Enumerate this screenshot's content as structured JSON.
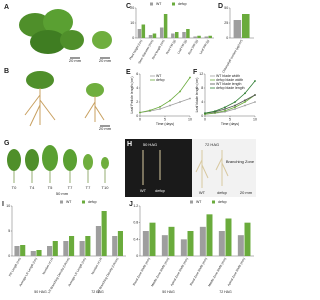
{
  "photos": [
    {
      "panel": "A",
      "texts": [
        "20 mm",
        "20 mm"
      ]
    },
    {
      "panel": "B",
      "texts": [
        "20 mm"
      ]
    },
    {
      "panel": "G",
      "texts": [
        "T0",
        "T4",
        "T5",
        "T7",
        "T7",
        "T10",
        "50 mm"
      ]
    },
    {
      "panel": "H",
      "texts": [
        "50 HAG",
        "72 HAG",
        "Branching Zone",
        "WT",
        "defcp",
        "WT",
        "defcp",
        "20 mm"
      ]
    }
  ],
  "chart_data": [
    {
      "type": "bar",
      "panel": "C",
      "categories": [
        "Plant height (cm)",
        "Stem diameter (mm)",
        "Root length (cm)",
        "Root FW (g)",
        "Leaf FW (g)",
        "Root DW (g)",
        "Leaf DW (g)"
      ],
      "series": [
        {
          "name": "WT",
          "color": "#9e9e9e",
          "values": [
            6,
            2,
            7,
            3,
            4,
            1,
            1
          ]
        },
        {
          "name": "defcp",
          "color": "#6aab3c",
          "values": [
            9,
            3,
            16,
            4,
            6,
            1.5,
            1.5
          ]
        }
      ],
      "ylim": [
        0,
        20
      ],
      "yticks": [
        0,
        10,
        20
      ]
    },
    {
      "type": "bar",
      "panel": "D",
      "categories": [
        "Chlorophyll content (µg/cm²)"
      ],
      "series": [
        {
          "name": "WT",
          "color": "#9e9e9e",
          "values": [
            30
          ]
        },
        {
          "name": "defcp",
          "color": "#6aab3c",
          "values": [
            40
          ]
        }
      ],
      "ylim": [
        0,
        50
      ],
      "yticks": [
        0,
        25,
        50
      ]
    },
    {
      "type": "line",
      "panel": "E",
      "ylabel": "Leaf Petiole length (cm)",
      "xlabel": "Time (days)",
      "x": [
        0,
        2,
        4,
        6,
        8,
        10
      ],
      "series": [
        {
          "name": "WT",
          "color": "#9e9e9e",
          "values": [
            0.5,
            0.7,
            1,
            1.5,
            2,
            2.5
          ]
        },
        {
          "name": "defcp",
          "color": "#6aab3c",
          "values": [
            0.5,
            0.8,
            1.3,
            2.2,
            3.5,
            5.5
          ]
        }
      ],
      "xlim": [
        0,
        10
      ],
      "xticks": [
        0,
        5,
        10
      ],
      "ylim": [
        0,
        6
      ],
      "yticks": [
        0,
        2,
        4,
        6
      ]
    },
    {
      "type": "line",
      "panel": "F",
      "ylabel": "Leaf blade length (cm)",
      "xlabel": "Time (days)",
      "x": [
        0,
        2,
        4,
        6,
        8,
        10
      ],
      "series": [
        {
          "name": "WT blade width",
          "color": "#9e9e9e",
          "values": [
            0.5,
            0.8,
            1.2,
            2,
            3,
            4
          ]
        },
        {
          "name": "defcp blade width",
          "color": "#6aab3c",
          "values": [
            0.5,
            0.9,
            1.5,
            2.5,
            4,
            6
          ]
        },
        {
          "name": "WT blade length",
          "color": "#555555",
          "values": [
            0.8,
            1.2,
            2,
            3,
            4.5,
            6
          ]
        },
        {
          "name": "defcp blade length",
          "color": "#2e7d32",
          "values": [
            0.8,
            1.4,
            2.5,
            4,
            6.5,
            10
          ]
        }
      ],
      "xlim": [
        0,
        10
      ],
      "xticks": [
        0,
        5,
        10
      ],
      "ylim": [
        0,
        12
      ],
      "yticks": [
        0,
        4,
        8,
        12
      ]
    },
    {
      "type": "bar",
      "panel": "I",
      "categories": [
        "PR Length (cm)",
        "Average LR Length (cm)",
        "Number of LR",
        "LR Branching Density (LR/cm)",
        "Average LR Length (cm)",
        "Number of LR",
        "LR Branching Density (LR/cm)"
      ],
      "group_labels": [
        "50 HAG",
        "72 HAG"
      ],
      "series": [
        {
          "name": "WT",
          "color": "#9e9e9e",
          "values": [
            2,
            1,
            2,
            3,
            3,
            6,
            4
          ]
        },
        {
          "name": "defcp",
          "color": "#6aab3c",
          "values": [
            2.2,
            1.2,
            3,
            4,
            4,
            9,
            5
          ]
        }
      ],
      "ylim": [
        0,
        10
      ],
      "yticks": [
        0,
        5,
        10
      ]
    },
    {
      "type": "bar",
      "panel": "J",
      "categories": [
        "Basal Zone Width (mm)",
        "Middle Zone Width (mm)",
        "Apical Zone Width (mm)",
        "Basal Zone Width (mm)",
        "Middle Zone Width (mm)",
        "Apical Zone Width (mm)"
      ],
      "group_labels": [
        "50 HAG",
        "72 HAG"
      ],
      "series": [
        {
          "name": "WT",
          "color": "#9e9e9e",
          "values": [
            0.6,
            0.5,
            0.4,
            0.7,
            0.6,
            0.5
          ]
        },
        {
          "name": "defcp",
          "color": "#6aab3c",
          "values": [
            0.8,
            0.7,
            0.6,
            1,
            0.9,
            0.8
          ]
        }
      ],
      "ylim": [
        0,
        1.2
      ],
      "yticks": [
        0,
        0.4,
        0.8,
        1.2
      ]
    }
  ]
}
